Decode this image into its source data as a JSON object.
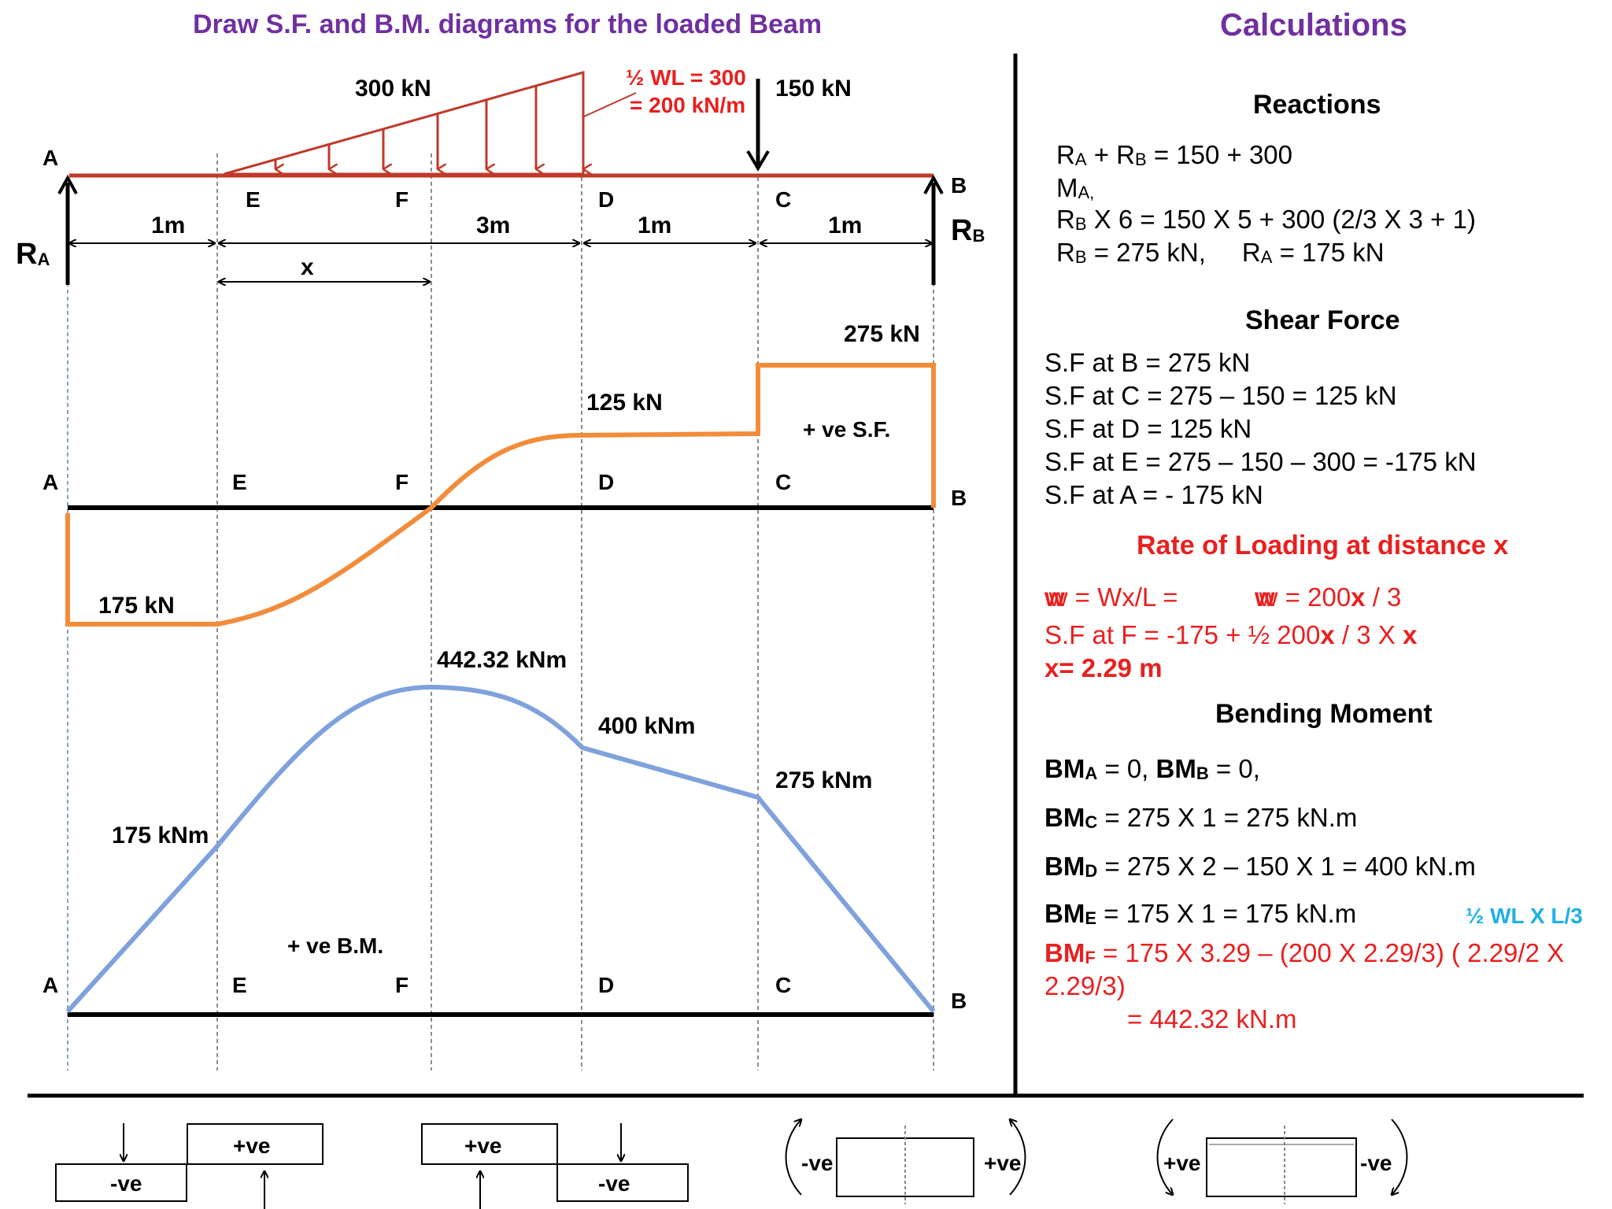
{
  "title": "Draw S.F. and B.M. diagrams for the loaded Beam",
  "calc_title": "Calculations",
  "colors": {
    "title": "#7030a0",
    "beam": "#c0392b",
    "sf": "#f28c3a",
    "bm": "#7fa1dc",
    "red_text": "#e8201f",
    "blue_text": "#1fb0e6"
  },
  "beam": {
    "point_labels": [
      "A",
      "B",
      "E",
      "F",
      "D",
      "C"
    ],
    "loads": [
      "300 kN",
      "150 kN"
    ],
    "load_note_1": "½ WL = 300",
    "load_note_2": "= 200 kN/m",
    "reactions": [
      "R",
      "A",
      "R",
      "B"
    ],
    "spans": [
      "1m",
      "3m",
      "1m",
      "1m"
    ],
    "x_label": "x"
  },
  "sf": {
    "values": [
      "275 kN",
      "125 kN",
      "175 kN"
    ],
    "note": "+ ve S.F."
  },
  "bm": {
    "values": [
      "442.32 kNm",
      "400 kNm",
      "275 kNm",
      "175 kNm"
    ],
    "note": "+ ve B.M."
  },
  "conventions": {
    "neg": "-ve",
    "pos": "+ve"
  },
  "calc": {
    "reactions": {
      "heading": "Reactions",
      "lines": [
        [
          "R",
          "A",
          " + R",
          "B",
          " = 150 + 300"
        ],
        [
          "M",
          "A,"
        ],
        [
          "R",
          "B",
          " X 6 = 150 X 5 + 300 (2/3 X 3 + 1)"
        ],
        [
          "R",
          "B",
          " = 275 kN,",
          "R",
          "A",
          " = 175 kN"
        ]
      ]
    },
    "shear": {
      "heading": "Shear Force",
      "lines": [
        "S.F at B = 275 kN",
        "S.F at C = 275 – 150 = 125 kN",
        "S.F at D = 125 kN",
        "S.F at E = 275 – 150 – 300 = -175 kN",
        "S.F at A = - 175 kN"
      ]
    },
    "rate": {
      "heading": "Rate of Loading at distance x",
      "line1a": "w = Wx/L =",
      "line1b": "w = 200 ",
      "line1c": "x",
      "line1d": " / 3",
      "line2a": "S.F at F = -175 + ½ 200",
      "line2b": "x",
      "line2c": " / 3 X ",
      "line2d": "x",
      "line3": "x= 2.29 m"
    },
    "bending": {
      "heading": "Bending Moment",
      "bm": "BM",
      "subs": [
        "A",
        "B",
        "C",
        "D",
        "E",
        "F"
      ],
      "l1a": " = 0, ",
      "l1b": " = 0,",
      "l2": " = 275 X 1 = 275 kN.m",
      "l3": " = 275 X 2 – 150 X 1 = 400 kN.m",
      "l4": " = 175 X 1 = 175 kN.m",
      "note": "½ WL X L/3",
      "l5": " = 175 X 3.29 – (200 X 2.29/3) ( 2.29/2 X",
      "l5b": "2.29/3)",
      "l6": "= 442.32 kN.m"
    }
  }
}
